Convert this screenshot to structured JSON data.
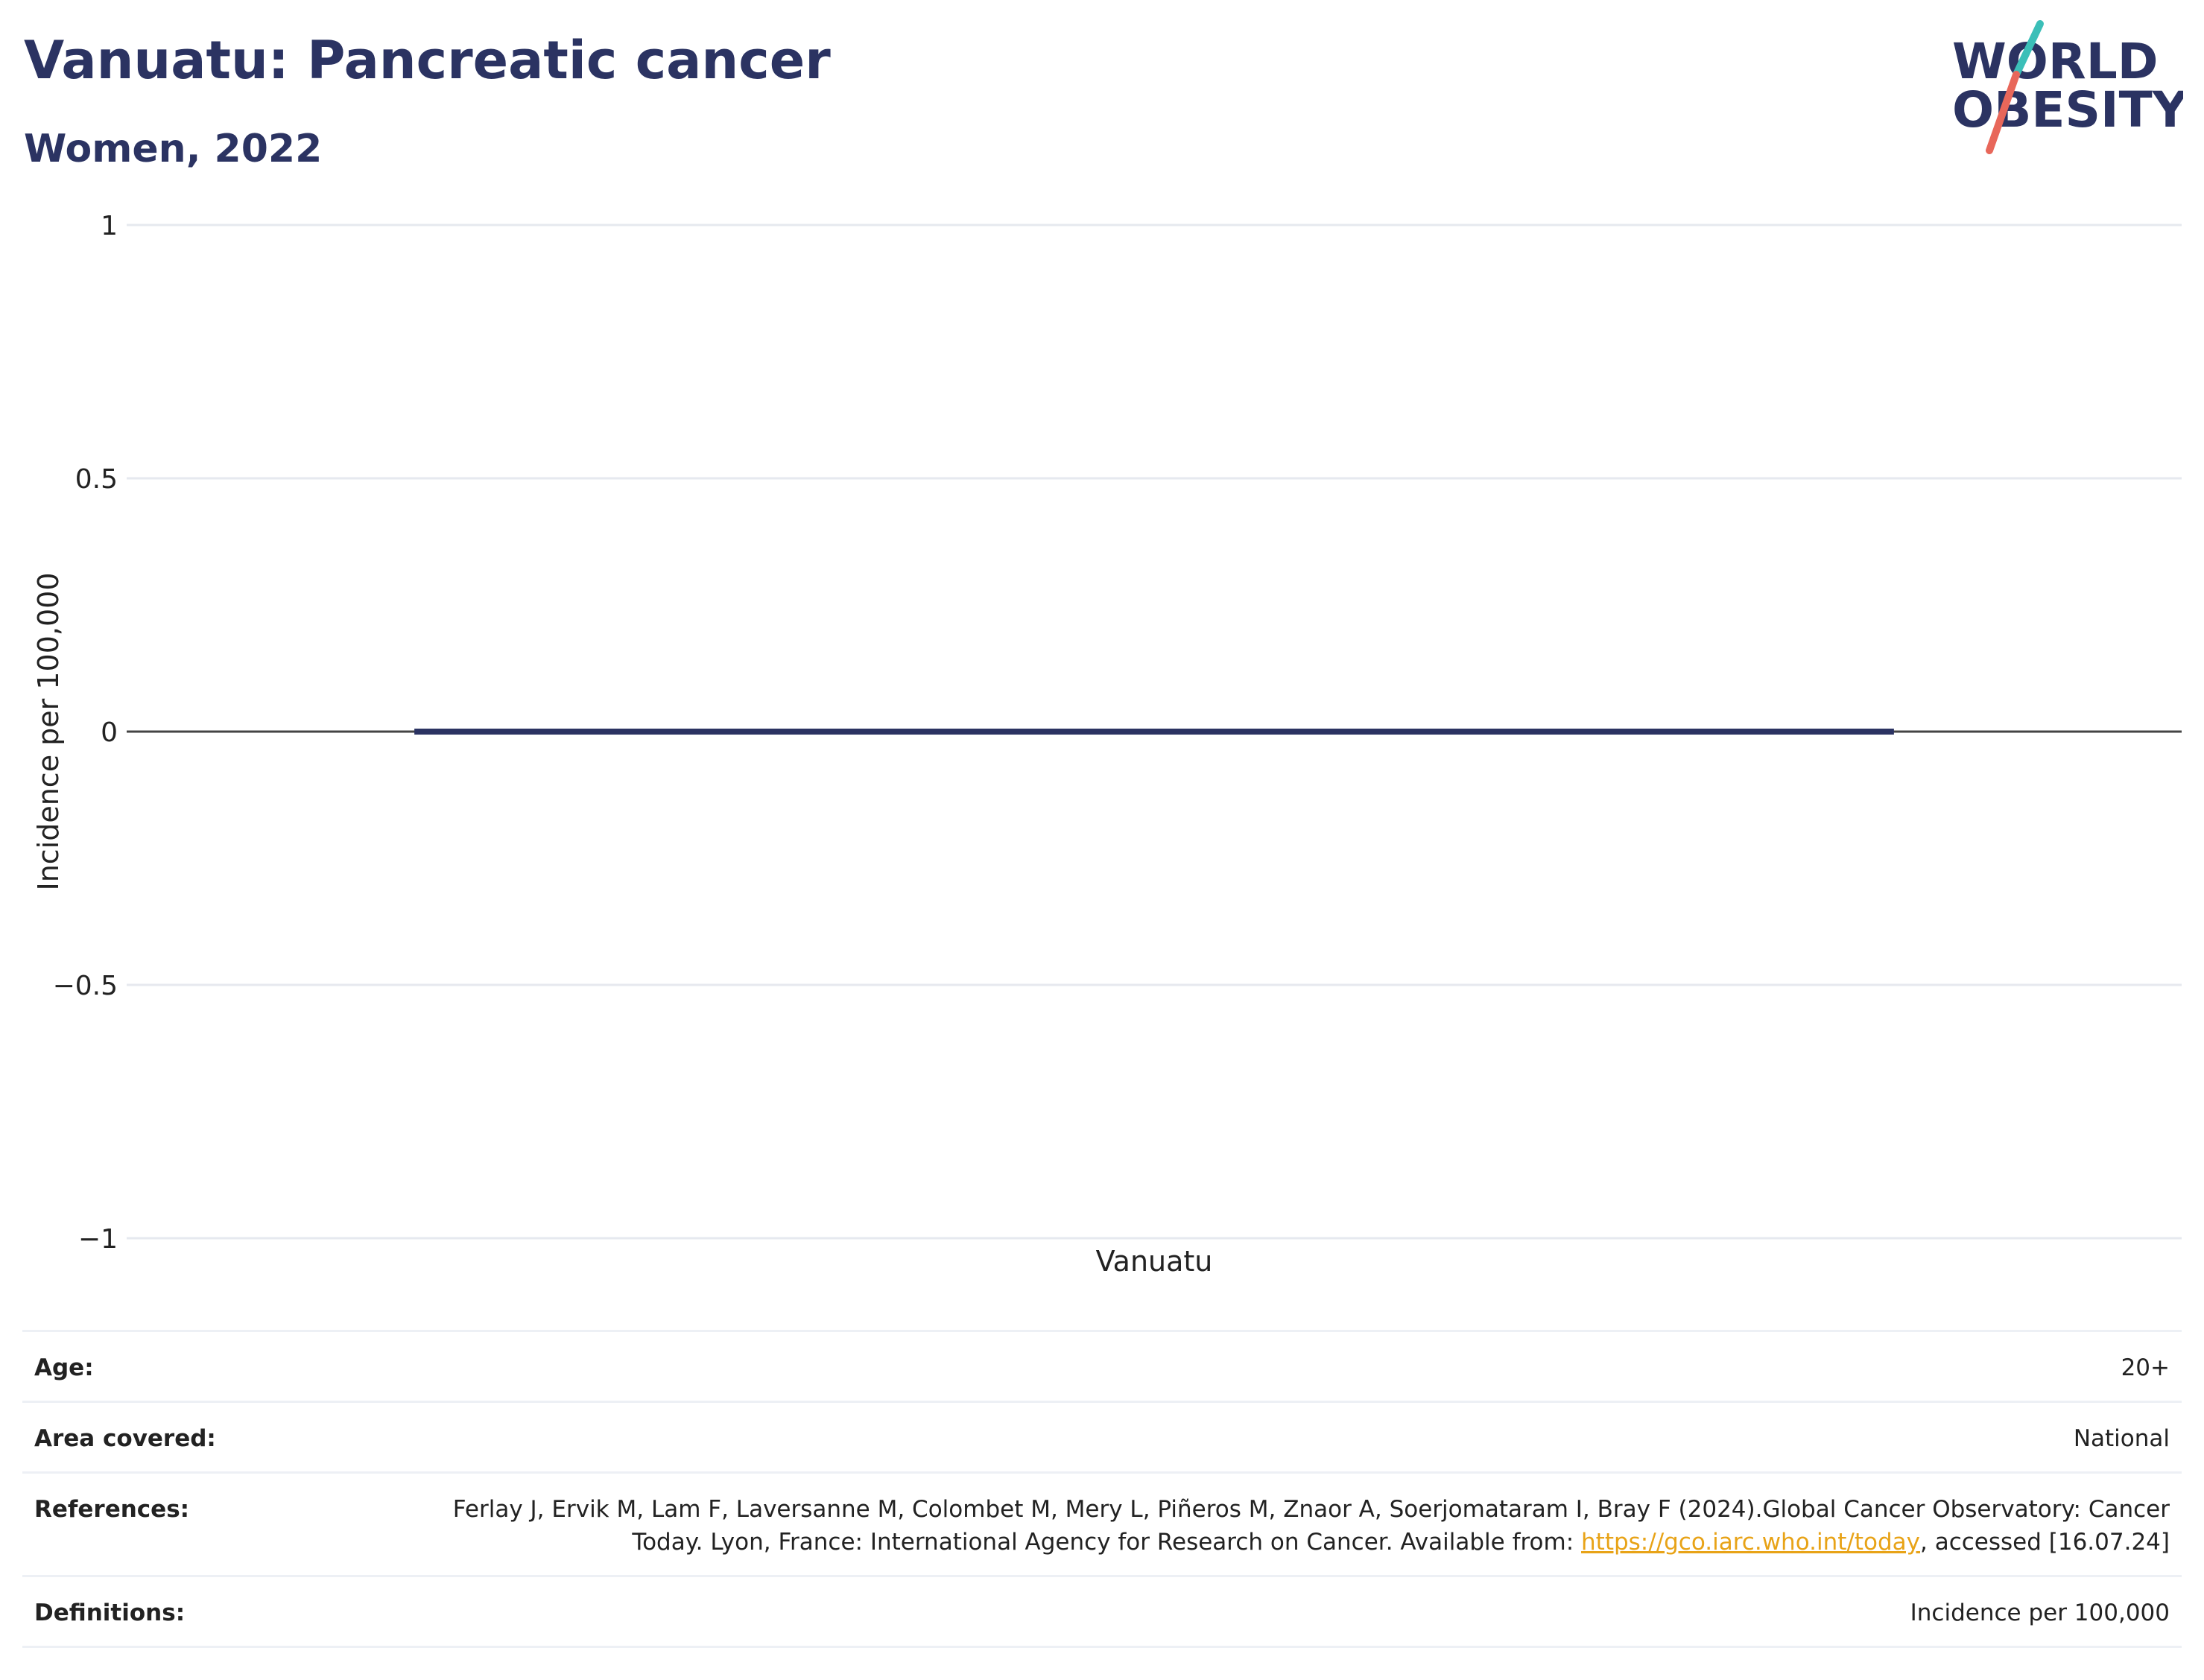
{
  "header": {
    "title": "Vanuatu: Pancreatic cancer",
    "subtitle": "Women, 2022"
  },
  "logo": {
    "line1": "WORLD",
    "line2": "OBESITY",
    "colors": {
      "text": "#2b3362",
      "slash_top": "#3bbfb8",
      "slash_bottom": "#e8675a"
    }
  },
  "chart_data": {
    "type": "bar",
    "categories": [
      "Vanuatu"
    ],
    "series": [
      {
        "values": [
          0
        ]
      }
    ],
    "title": "Vanuatu: Pancreatic cancer",
    "subtitle": "Women, 2022",
    "xlabel": "",
    "ylabel": "Incidence per 100,000",
    "ylim": [
      -1,
      1
    ],
    "yticks": [
      1,
      0.5,
      0,
      -0.5,
      -1
    ],
    "ytick_labels": [
      "1",
      "0.5",
      "0",
      "−0.5",
      "−1"
    ],
    "grid": true,
    "bar_color": "#2b3362"
  },
  "meta": {
    "age": {
      "label": "Age:",
      "value": "20+"
    },
    "area": {
      "label": "Area covered:",
      "value": "National"
    },
    "references": {
      "label": "References:",
      "text_before": "Ferlay J, Ervik M, Lam F, Laversanne M, Colombet M, Mery L, Piñeros M, Znaor A, Soerjomataram I, Bray F (2024).Global Cancer Observatory: Cancer Today. Lyon, France: International Agency for Research on Cancer. Available from: ",
      "link": "https://gco.iarc.who.int/today",
      "text_after": ", accessed [16.07.24]"
    },
    "definitions": {
      "label": "Definitions:",
      "value": "Incidence per 100,000"
    }
  }
}
